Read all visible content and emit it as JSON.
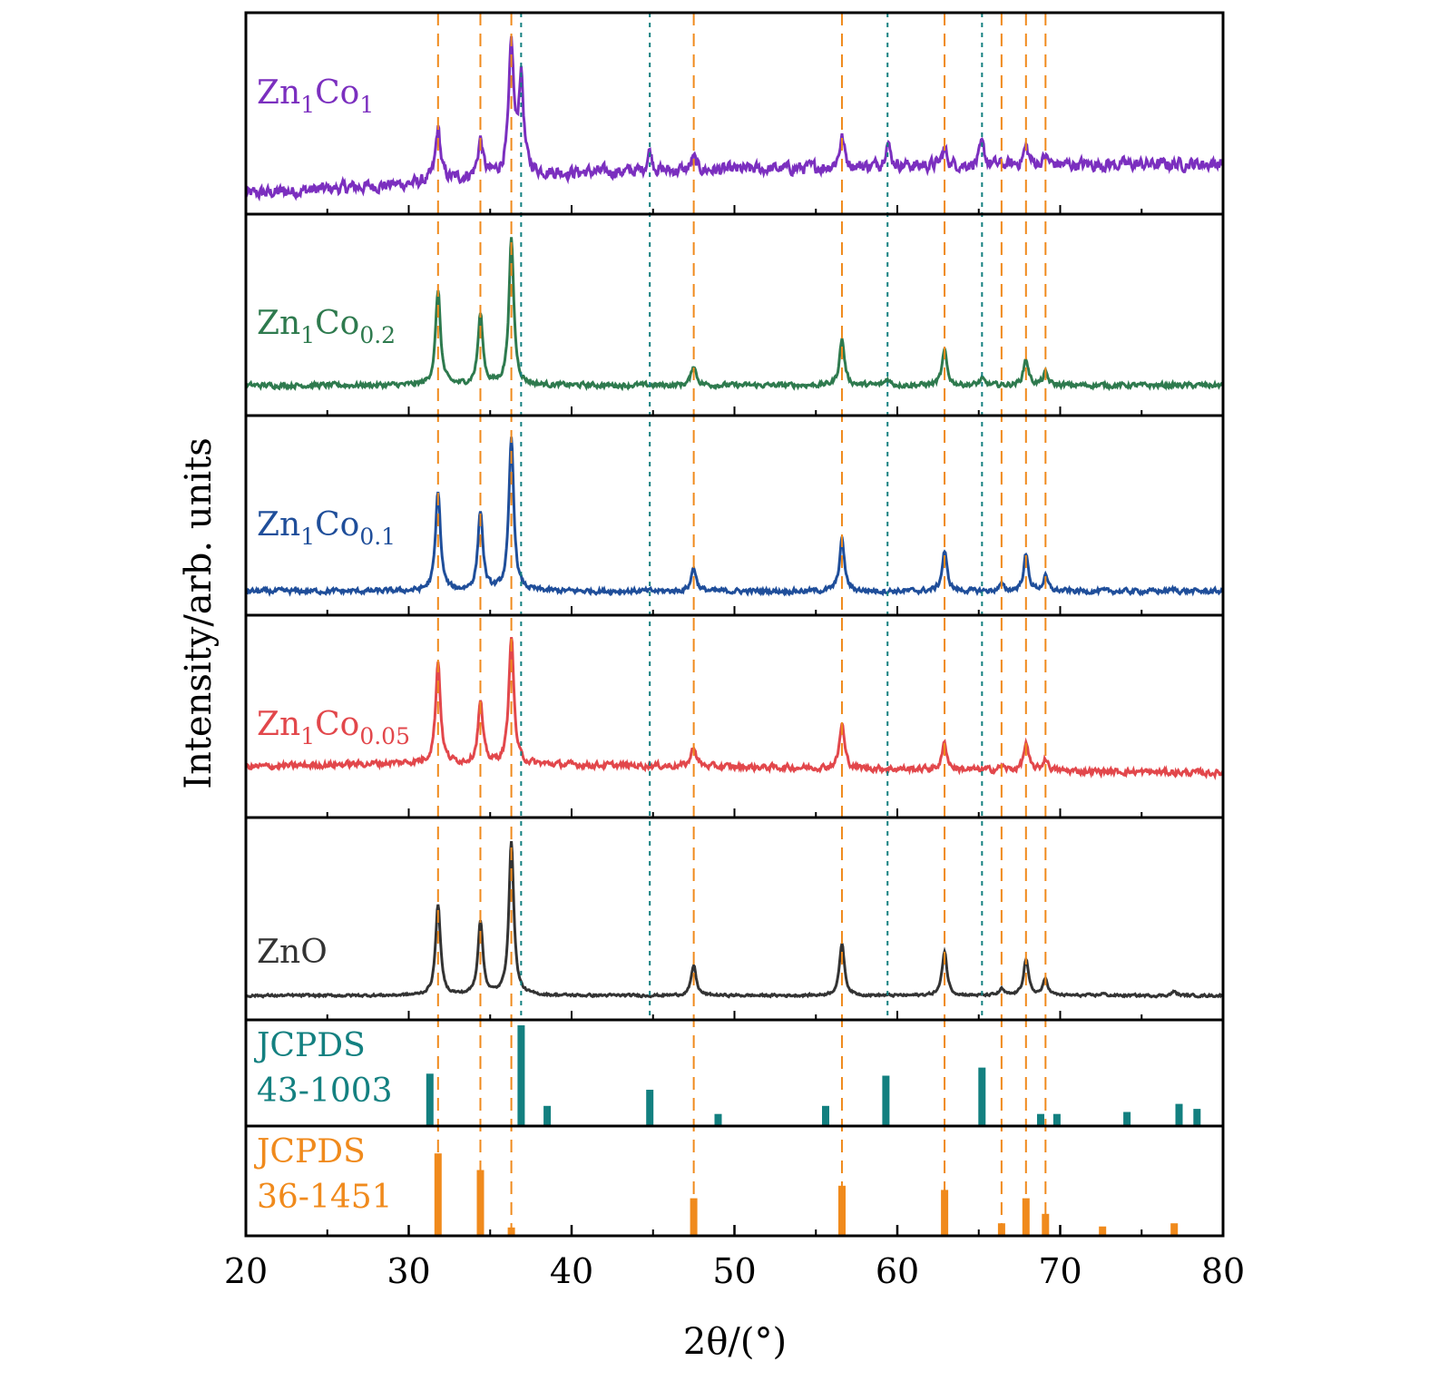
{
  "chart_data": {
    "type": "line",
    "xlabel": "2θ/(°)",
    "ylabel": "Intensity/arb. units",
    "xlim": [
      20,
      80
    ],
    "x_ticks": [
      "20",
      "30",
      "40",
      "50",
      "60",
      "70",
      "80"
    ],
    "reference_lines": {
      "orange_dashed_2theta": [
        31.8,
        34.4,
        36.3,
        47.5,
        56.6,
        62.9,
        66.4,
        67.9,
        69.1
      ],
      "teal_dotted_2theta": [
        36.9,
        44.8,
        59.4,
        65.2
      ]
    },
    "series": [
      {
        "name": "Zn1Co1",
        "label": {
          "base": "Zn",
          "sub1": "1",
          "mid": "Co",
          "sub2": "1"
        },
        "color": "#7b2fbf",
        "baseline": [
          [
            20,
            0.1
          ],
          [
            30,
            0.15
          ],
          [
            36,
            0.2
          ],
          [
            50,
            0.22
          ],
          [
            60,
            0.24
          ],
          [
            80,
            0.25
          ]
        ],
        "peaks": [
          [
            31.8,
            0.26
          ],
          [
            34.4,
            0.18
          ],
          [
            36.3,
            0.62
          ],
          [
            36.9,
            0.47
          ],
          [
            44.8,
            0.1
          ],
          [
            47.5,
            0.06
          ],
          [
            56.6,
            0.15
          ],
          [
            59.4,
            0.12
          ],
          [
            62.9,
            0.08
          ],
          [
            65.2,
            0.1
          ],
          [
            67.9,
            0.09
          ],
          [
            69.1,
            0.04
          ]
        ],
        "noise": 0.025
      },
      {
        "name": "Zn1Co0.2",
        "label": {
          "base": "Zn",
          "sub1": "1",
          "mid": "Co",
          "sub2": "0.2"
        },
        "color": "#2e7a4e",
        "baseline": [
          [
            20,
            0.15
          ],
          [
            80,
            0.15
          ]
        ],
        "peaks": [
          [
            31.8,
            0.47
          ],
          [
            34.4,
            0.35
          ],
          [
            36.3,
            0.72
          ],
          [
            47.5,
            0.1
          ],
          [
            56.6,
            0.23
          ],
          [
            59.4,
            0.03
          ],
          [
            62.9,
            0.17
          ],
          [
            65.2,
            0.03
          ],
          [
            67.9,
            0.13
          ],
          [
            69.1,
            0.06
          ]
        ],
        "noise": 0.01
      },
      {
        "name": "Zn1Co0.1",
        "label": {
          "base": "Zn",
          "sub1": "1",
          "mid": "Co",
          "sub2": "0.1"
        },
        "color": "#1f4e9a",
        "baseline": [
          [
            20,
            0.12
          ],
          [
            80,
            0.12
          ]
        ],
        "peaks": [
          [
            31.8,
            0.5
          ],
          [
            34.4,
            0.4
          ],
          [
            36.3,
            0.76
          ],
          [
            47.5,
            0.12
          ],
          [
            56.6,
            0.26
          ],
          [
            62.9,
            0.2
          ],
          [
            66.4,
            0.03
          ],
          [
            67.9,
            0.18
          ],
          [
            69.1,
            0.07
          ],
          [
            77.0,
            0.01
          ]
        ],
        "noise": 0.01
      },
      {
        "name": "Zn1Co0.05",
        "label": {
          "base": "Zn",
          "sub1": "1",
          "mid": "Co",
          "sub2": "0.05"
        },
        "color": "#e2474b",
        "baseline": [
          [
            20,
            0.25
          ],
          [
            30,
            0.27
          ],
          [
            40,
            0.26
          ],
          [
            60,
            0.24
          ],
          [
            80,
            0.22
          ]
        ],
        "peaks": [
          [
            31.8,
            0.5
          ],
          [
            34.4,
            0.3
          ],
          [
            36.3,
            0.64
          ],
          [
            47.5,
            0.1
          ],
          [
            56.6,
            0.22
          ],
          [
            62.9,
            0.13
          ],
          [
            66.4,
            0.02
          ],
          [
            67.9,
            0.13
          ],
          [
            69.1,
            0.06
          ]
        ],
        "noise": 0.012
      },
      {
        "name": "ZnO",
        "label": {
          "base": "ZnO",
          "sub1": "",
          "mid": "",
          "sub2": ""
        },
        "color": "#333333",
        "baseline": [
          [
            20,
            0.12
          ],
          [
            80,
            0.12
          ]
        ],
        "peaks": [
          [
            31.8,
            0.45
          ],
          [
            34.4,
            0.37
          ],
          [
            36.3,
            0.76
          ],
          [
            47.5,
            0.15
          ],
          [
            56.6,
            0.26
          ],
          [
            62.9,
            0.22
          ],
          [
            66.4,
            0.03
          ],
          [
            67.9,
            0.18
          ],
          [
            69.1,
            0.08
          ],
          [
            72.6,
            0.01
          ],
          [
            77.0,
            0.02
          ]
        ],
        "noise": 0.005
      }
    ],
    "references": [
      {
        "name": "JCPDS 43-1003",
        "line1": "JCPDS",
        "line2": "43-1003",
        "color": "#138080",
        "sticks": [
          [
            31.3,
            52
          ],
          [
            36.9,
            100
          ],
          [
            38.5,
            20
          ],
          [
            44.8,
            36
          ],
          [
            49.0,
            12
          ],
          [
            55.6,
            20
          ],
          [
            59.3,
            50
          ],
          [
            65.2,
            58
          ],
          [
            68.8,
            12
          ],
          [
            69.8,
            12
          ],
          [
            74.1,
            14
          ],
          [
            77.3,
            22
          ],
          [
            78.4,
            17
          ]
        ]
      },
      {
        "name": "JCPDS 36-1451",
        "line1": "JCPDS",
        "line2": "36-1451",
        "color": "#f08a1c",
        "sticks": [
          [
            31.8,
            79
          ],
          [
            34.4,
            63
          ],
          [
            36.3,
            8
          ],
          [
            47.5,
            36
          ],
          [
            56.6,
            48
          ],
          [
            62.9,
            44
          ],
          [
            66.4,
            12
          ],
          [
            67.9,
            36
          ],
          [
            69.1,
            21
          ],
          [
            72.6,
            9
          ],
          [
            77.0,
            12
          ]
        ]
      }
    ]
  }
}
